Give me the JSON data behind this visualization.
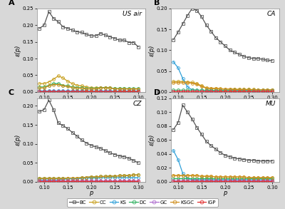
{
  "p_values": [
    0.09,
    0.1,
    0.11,
    0.12,
    0.13,
    0.14,
    0.15,
    0.16,
    0.17,
    0.18,
    0.19,
    0.2,
    0.21,
    0.22,
    0.23,
    0.24,
    0.25,
    0.26,
    0.27,
    0.28,
    0.29,
    0.3
  ],
  "subplots": {
    "A": {
      "title": "US air",
      "ylim": [
        0,
        0.25
      ],
      "yticks": [
        0.0,
        0.05,
        0.1,
        0.15,
        0.2,
        0.25
      ],
      "BC": [
        0.19,
        0.2,
        0.24,
        0.22,
        0.21,
        0.195,
        0.19,
        0.185,
        0.18,
        0.178,
        0.172,
        0.168,
        0.168,
        0.175,
        0.17,
        0.165,
        0.16,
        0.155,
        0.155,
        0.148,
        0.148,
        0.135
      ],
      "CC": [
        0.025,
        0.025,
        0.03,
        0.038,
        0.048,
        0.042,
        0.032,
        0.025,
        0.02,
        0.018,
        0.015,
        0.013,
        0.013,
        0.013,
        0.013,
        0.012,
        0.01,
        0.01,
        0.01,
        0.009,
        0.009,
        0.009
      ],
      "KS": [
        0.005,
        0.005,
        0.005,
        0.005,
        0.005,
        0.005,
        0.005,
        0.005,
        0.005,
        0.005,
        0.005,
        0.005,
        0.005,
        0.005,
        0.005,
        0.005,
        0.005,
        0.005,
        0.005,
        0.005,
        0.005,
        0.005
      ],
      "DC": [
        0.015,
        0.015,
        0.02,
        0.025,
        0.025,
        0.02,
        0.018,
        0.015,
        0.013,
        0.013,
        0.01,
        0.01,
        0.01,
        0.013,
        0.013,
        0.013,
        0.01,
        0.01,
        0.01,
        0.01,
        0.01,
        0.01
      ],
      "GC": [
        0.003,
        0.003,
        0.003,
        0.003,
        0.003,
        0.003,
        0.003,
        0.003,
        0.003,
        0.003,
        0.003,
        0.003,
        0.003,
        0.003,
        0.003,
        0.003,
        0.003,
        0.003,
        0.003,
        0.003,
        0.003,
        0.003
      ],
      "KSGC": [
        0.012,
        0.012,
        0.018,
        0.022,
        0.022,
        0.018,
        0.016,
        0.013,
        0.011,
        0.011,
        0.009,
        0.009,
        0.009,
        0.012,
        0.012,
        0.012,
        0.009,
        0.009,
        0.009,
        0.009,
        0.009,
        0.009
      ],
      "IGP": [
        0.001,
        0.001,
        0.001,
        0.001,
        0.001,
        0.001,
        0.001,
        0.001,
        0.001,
        0.001,
        0.001,
        0.001,
        0.001,
        0.001,
        0.001,
        0.001,
        0.001,
        0.001,
        0.001,
        0.001,
        0.001,
        0.001
      ]
    },
    "B": {
      "title": "CA",
      "ylim": [
        0,
        0.2
      ],
      "yticks": [
        0.0,
        0.05,
        0.1,
        0.15,
        0.2
      ],
      "BC": [
        0.125,
        0.143,
        0.163,
        0.183,
        0.2,
        0.195,
        0.18,
        0.16,
        0.145,
        0.13,
        0.12,
        0.11,
        0.1,
        0.095,
        0.09,
        0.085,
        0.082,
        0.08,
        0.08,
        0.078,
        0.076,
        0.075
      ],
      "CC": [
        0.025,
        0.025,
        0.025,
        0.024,
        0.023,
        0.02,
        0.015,
        0.01,
        0.009,
        0.009,
        0.008,
        0.007,
        0.007,
        0.007,
        0.006,
        0.006,
        0.006,
        0.006,
        0.005,
        0.005,
        0.005,
        0.005
      ],
      "KS": [
        0.072,
        0.058,
        0.032,
        0.012,
        0.005,
        0.004,
        0.004,
        0.003,
        0.003,
        0.003,
        0.003,
        0.003,
        0.003,
        0.003,
        0.003,
        0.003,
        0.003,
        0.003,
        0.003,
        0.003,
        0.003,
        0.003
      ],
      "DC": [
        0.005,
        0.005,
        0.005,
        0.005,
        0.005,
        0.005,
        0.005,
        0.005,
        0.005,
        0.005,
        0.005,
        0.005,
        0.005,
        0.005,
        0.005,
        0.005,
        0.005,
        0.005,
        0.005,
        0.005,
        0.005,
        0.005
      ],
      "GC": [
        0.002,
        0.002,
        0.002,
        0.002,
        0.002,
        0.002,
        0.002,
        0.002,
        0.002,
        0.002,
        0.002,
        0.002,
        0.002,
        0.002,
        0.002,
        0.002,
        0.002,
        0.002,
        0.002,
        0.002,
        0.002,
        0.002
      ],
      "KSGC": [
        0.022,
        0.022,
        0.022,
        0.022,
        0.021,
        0.018,
        0.013,
        0.009,
        0.008,
        0.008,
        0.007,
        0.007,
        0.007,
        0.006,
        0.006,
        0.006,
        0.006,
        0.005,
        0.005,
        0.005,
        0.005,
        0.005
      ],
      "IGP": [
        0.001,
        0.001,
        0.001,
        0.001,
        0.001,
        0.001,
        0.001,
        0.001,
        0.001,
        0.001,
        0.001,
        0.001,
        0.001,
        0.001,
        0.001,
        0.001,
        0.001,
        0.001,
        0.001,
        0.001,
        0.001,
        0.001
      ]
    },
    "C": {
      "title": "CZ",
      "ylim": [
        0,
        0.22
      ],
      "yticks": [
        0.0,
        0.05,
        0.1,
        0.15,
        0.2
      ],
      "BC": [
        0.185,
        0.19,
        0.215,
        0.19,
        0.155,
        0.148,
        0.14,
        0.13,
        0.12,
        0.11,
        0.102,
        0.096,
        0.092,
        0.088,
        0.082,
        0.076,
        0.072,
        0.068,
        0.066,
        0.062,
        0.056,
        0.05
      ],
      "CC": [
        0.009,
        0.009,
        0.009,
        0.009,
        0.009,
        0.009,
        0.01,
        0.01,
        0.01,
        0.011,
        0.012,
        0.013,
        0.013,
        0.014,
        0.014,
        0.015,
        0.015,
        0.016,
        0.016,
        0.017,
        0.018,
        0.018
      ],
      "KS": [
        0.005,
        0.005,
        0.005,
        0.005,
        0.005,
        0.007,
        0.007,
        0.008,
        0.008,
        0.009,
        0.01,
        0.01,
        0.01,
        0.011,
        0.011,
        0.011,
        0.011,
        0.011,
        0.011,
        0.011,
        0.011,
        0.011
      ],
      "DC": [
        0.009,
        0.009,
        0.009,
        0.009,
        0.009,
        0.009,
        0.01,
        0.01,
        0.01,
        0.011,
        0.012,
        0.013,
        0.013,
        0.014,
        0.014,
        0.015,
        0.015,
        0.016,
        0.016,
        0.017,
        0.018,
        0.018
      ],
      "GC": [
        0.003,
        0.003,
        0.003,
        0.003,
        0.003,
        0.003,
        0.003,
        0.003,
        0.003,
        0.003,
        0.003,
        0.003,
        0.003,
        0.003,
        0.003,
        0.003,
        0.003,
        0.003,
        0.003,
        0.003,
        0.003,
        0.003
      ],
      "KSGC": [
        0.009,
        0.009,
        0.009,
        0.009,
        0.009,
        0.009,
        0.01,
        0.01,
        0.01,
        0.011,
        0.012,
        0.013,
        0.013,
        0.014,
        0.014,
        0.015,
        0.015,
        0.016,
        0.016,
        0.017,
        0.018,
        0.018
      ],
      "IGP": [
        0.001,
        0.001,
        0.001,
        0.001,
        0.001,
        0.001,
        0.001,
        0.001,
        0.001,
        0.001,
        0.001,
        0.001,
        0.001,
        0.001,
        0.001,
        0.001,
        0.001,
        0.001,
        0.001,
        0.001,
        0.001,
        0.001
      ]
    },
    "D": {
      "title": "MU",
      "ylim": [
        0,
        0.12
      ],
      "yticks": [
        0.0,
        0.02,
        0.04,
        0.06,
        0.08,
        0.1,
        0.12
      ],
      "BC": [
        0.075,
        0.085,
        0.11,
        0.1,
        0.09,
        0.078,
        0.068,
        0.058,
        0.052,
        0.047,
        0.042,
        0.038,
        0.036,
        0.034,
        0.033,
        0.032,
        0.031,
        0.031,
        0.03,
        0.03,
        0.03,
        0.03
      ],
      "CC": [
        0.009,
        0.009,
        0.009,
        0.009,
        0.009,
        0.009,
        0.008,
        0.008,
        0.008,
        0.007,
        0.007,
        0.007,
        0.007,
        0.007,
        0.007,
        0.007,
        0.006,
        0.006,
        0.006,
        0.006,
        0.006,
        0.006
      ],
      "KS": [
        0.045,
        0.032,
        0.012,
        0.005,
        0.003,
        0.003,
        0.003,
        0.003,
        0.003,
        0.003,
        0.003,
        0.003,
        0.003,
        0.003,
        0.003,
        0.003,
        0.003,
        0.003,
        0.003,
        0.003,
        0.003,
        0.003
      ],
      "DC": [
        0.005,
        0.005,
        0.005,
        0.005,
        0.005,
        0.005,
        0.005,
        0.005,
        0.005,
        0.005,
        0.005,
        0.005,
        0.005,
        0.005,
        0.005,
        0.005,
        0.005,
        0.005,
        0.005,
        0.005,
        0.005,
        0.005
      ],
      "GC": [
        0.002,
        0.002,
        0.002,
        0.002,
        0.002,
        0.002,
        0.002,
        0.002,
        0.002,
        0.002,
        0.002,
        0.002,
        0.002,
        0.002,
        0.002,
        0.002,
        0.002,
        0.002,
        0.002,
        0.002,
        0.002,
        0.002
      ],
      "KSGC": [
        0.009,
        0.009,
        0.009,
        0.009,
        0.009,
        0.009,
        0.008,
        0.008,
        0.008,
        0.007,
        0.007,
        0.007,
        0.007,
        0.007,
        0.007,
        0.007,
        0.006,
        0.006,
        0.006,
        0.006,
        0.006,
        0.006
      ],
      "IGP": [
        0.001,
        0.001,
        0.001,
        0.001,
        0.001,
        0.001,
        0.001,
        0.001,
        0.001,
        0.001,
        0.001,
        0.001,
        0.001,
        0.001,
        0.001,
        0.001,
        0.001,
        0.001,
        0.001,
        0.001,
        0.001,
        0.001
      ]
    }
  },
  "line_styles": {
    "BC": {
      "color": "#555555",
      "marker": "s",
      "markersize": 2.8,
      "linewidth": 0.9,
      "mfc": "none"
    },
    "CC": {
      "color": "#c8a020",
      "marker": "o",
      "markersize": 2.8,
      "linewidth": 0.9,
      "mfc": "none"
    },
    "KS": {
      "color": "#30a0d8",
      "marker": "o",
      "markersize": 2.8,
      "linewidth": 0.9,
      "mfc": "none"
    },
    "DC": {
      "color": "#30b060",
      "marker": "o",
      "markersize": 2.8,
      "linewidth": 0.9,
      "mfc": "none"
    },
    "GC": {
      "color": "#b070d0",
      "marker": "o",
      "markersize": 2.8,
      "linewidth": 0.9,
      "mfc": "none"
    },
    "KSGC": {
      "color": "#d09020",
      "marker": "o",
      "markersize": 2.8,
      "linewidth": 0.9,
      "mfc": "none"
    },
    "IGP": {
      "color": "#e03030",
      "marker": "o",
      "markersize": 2.8,
      "linewidth": 0.9,
      "mfc": "none"
    }
  },
  "xlabel": "p",
  "ylabel": "ε(p)",
  "xticks": [
    0.1,
    0.15,
    0.2,
    0.25,
    0.3
  ],
  "background_color": "#ffffff",
  "panel_bg": "#e8e8e8",
  "legend_order": [
    "BC",
    "CC",
    "KS",
    "DC",
    "GC",
    "KSGC",
    "IGP"
  ]
}
